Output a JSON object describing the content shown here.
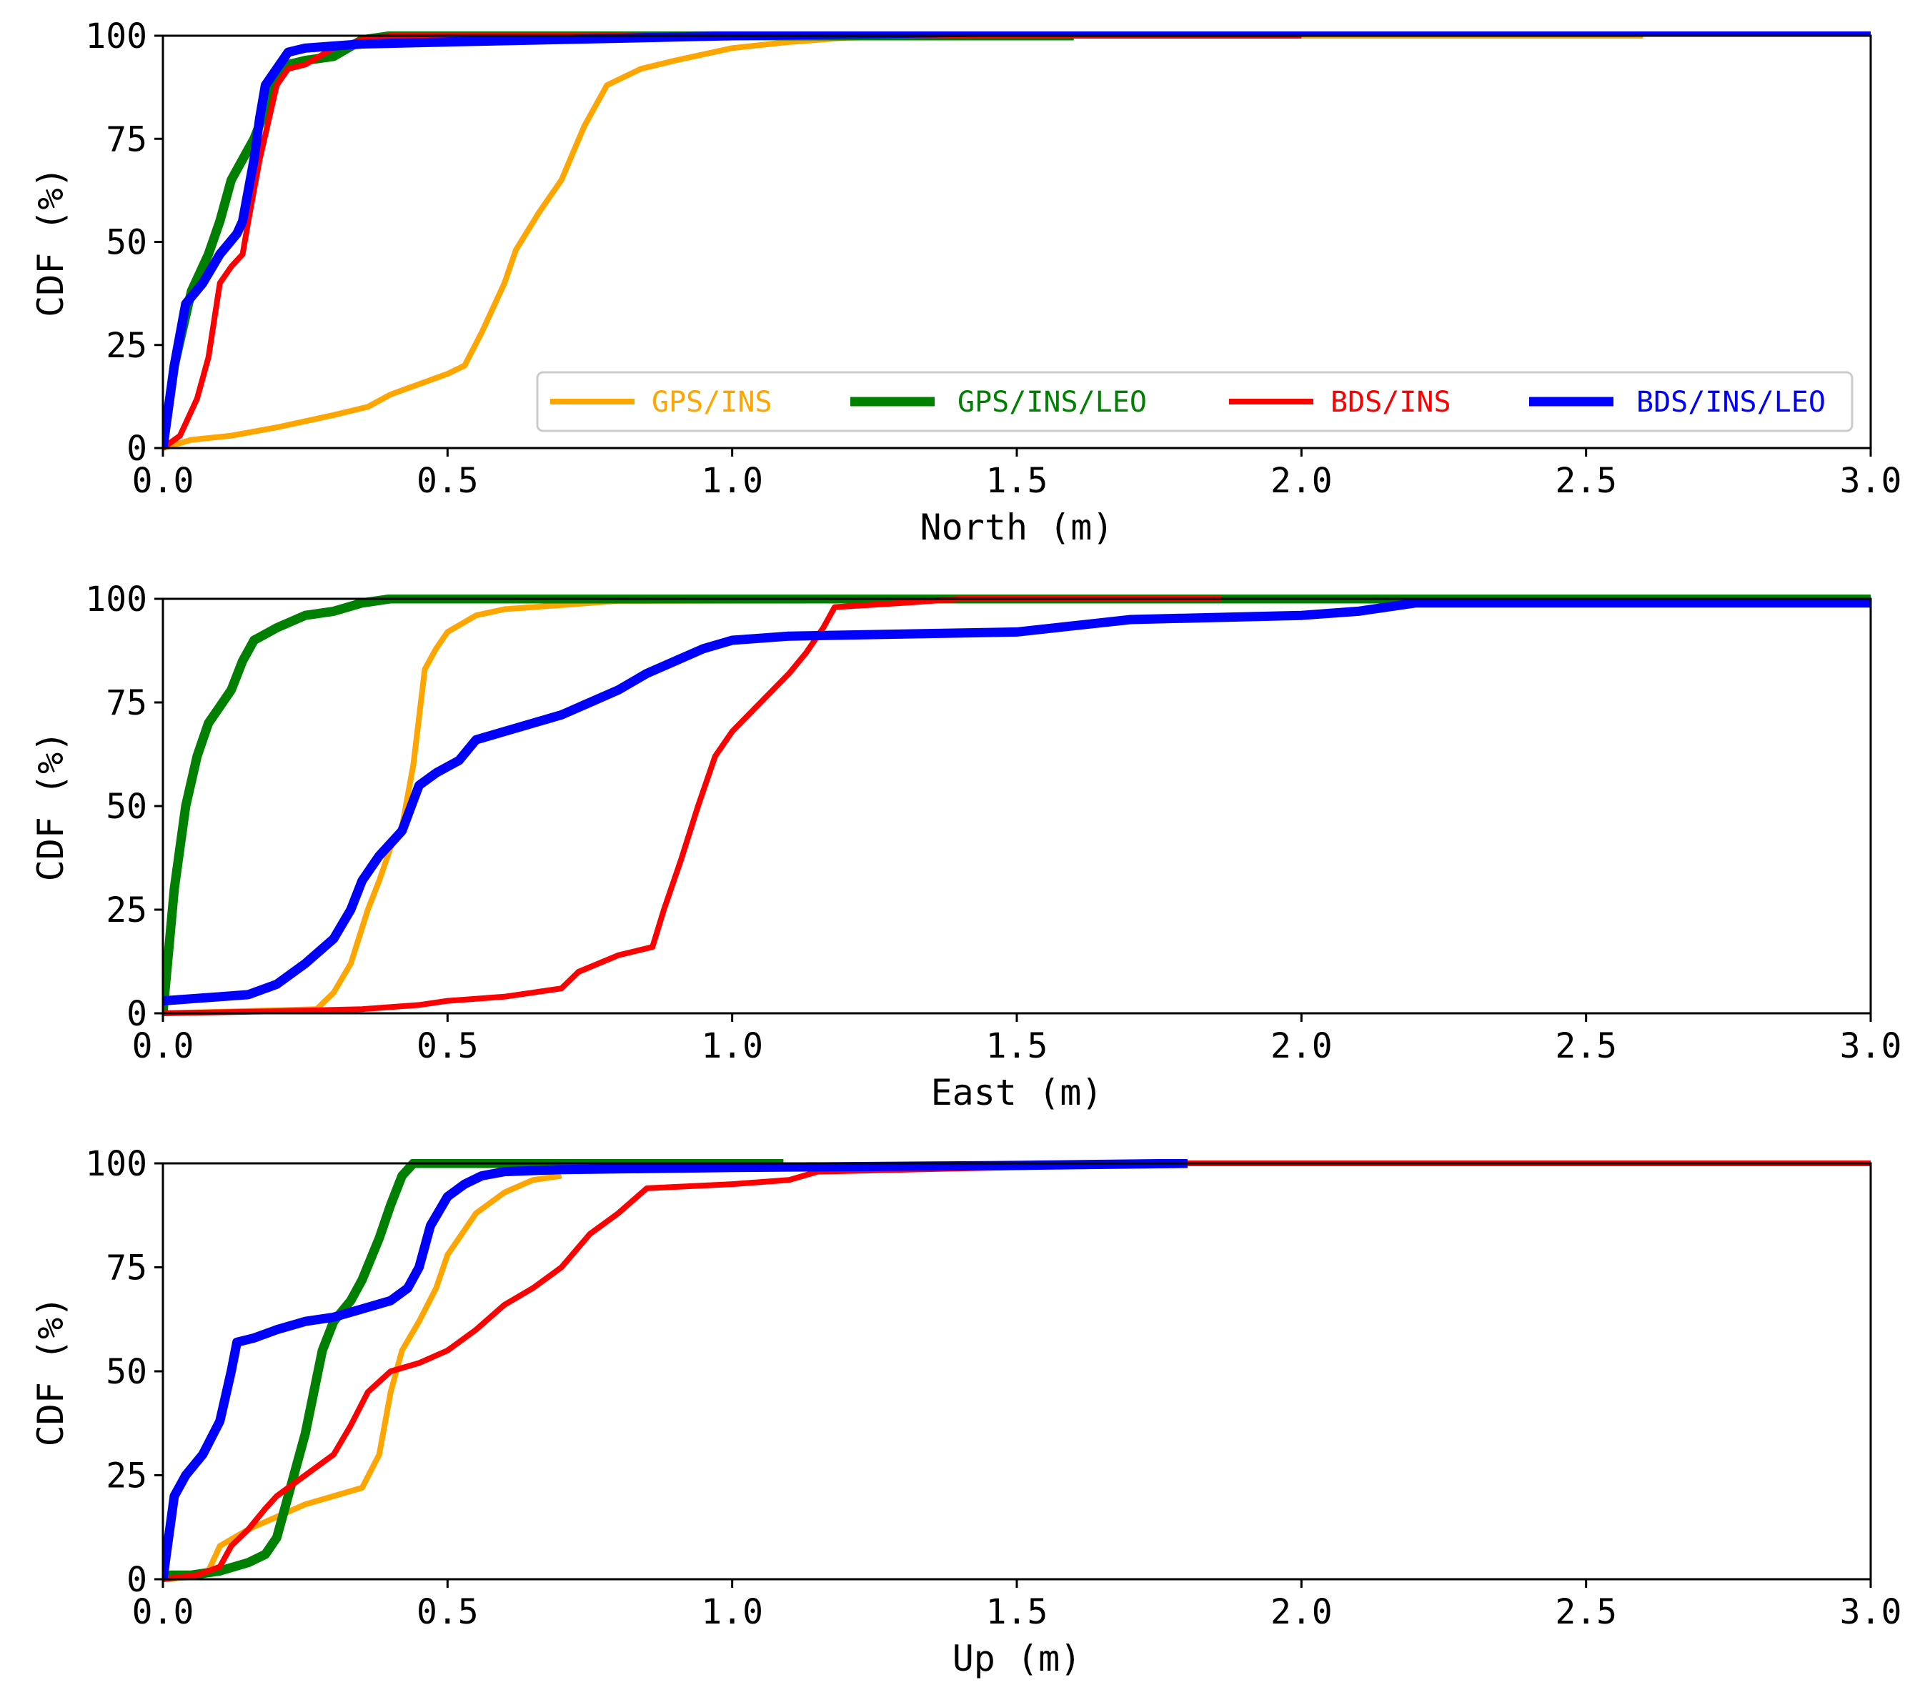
{
  "chart_data": [
    {
      "type": "line",
      "xlabel": "North (m)",
      "ylabel": "CDF (%)",
      "xlim": [
        0,
        3
      ],
      "ylim": [
        0,
        100
      ],
      "xticks": [
        "0.0",
        "0.5",
        "1.0",
        "1.5",
        "2.0",
        "2.5",
        "3.0"
      ],
      "yticks": [
        "0",
        "25",
        "50",
        "75",
        "100"
      ],
      "legend": "bottom-right",
      "series": [
        {
          "name": "GPS/INS",
          "color": "#FFA500",
          "x": [
            0,
            0.05,
            0.12,
            0.2,
            0.3,
            0.36,
            0.4,
            0.44,
            0.5,
            0.53,
            0.56,
            0.6,
            0.62,
            0.66,
            0.7,
            0.74,
            0.78,
            0.84,
            0.9,
            1.0,
            1.1,
            1.2,
            1.4,
            2.6
          ],
          "y": [
            0,
            2,
            3,
            5,
            8,
            10,
            13,
            15,
            18,
            20,
            28,
            40,
            48,
            57,
            65,
            78,
            88,
            92,
            94,
            97,
            98.5,
            99.5,
            100,
            100
          ]
        },
        {
          "name": "GPS/INS/LEO",
          "color": "#008000",
          "x": [
            0,
            0.02,
            0.05,
            0.08,
            0.1,
            0.12,
            0.14,
            0.16,
            0.18,
            0.2,
            0.22,
            0.25,
            0.3,
            0.35,
            0.4,
            1.6
          ],
          "y": [
            0,
            20,
            38,
            47,
            55,
            65,
            70,
            75,
            82,
            90,
            93,
            94,
            95,
            99,
            100,
            100
          ]
        },
        {
          "name": "BDS/INS",
          "color": "#FF0000",
          "x": [
            0,
            0.03,
            0.06,
            0.08,
            0.1,
            0.12,
            0.14,
            0.15,
            0.17,
            0.2,
            0.22,
            0.25,
            0.3,
            0.35,
            0.4,
            2.0
          ],
          "y": [
            0,
            3,
            12,
            22,
            40,
            44,
            47,
            55,
            70,
            88,
            92,
            93,
            97,
            99,
            100,
            100
          ]
        },
        {
          "name": "BDS/INS/LEO",
          "color": "#0000FF",
          "x": [
            0,
            0.02,
            0.04,
            0.07,
            0.1,
            0.13,
            0.14,
            0.16,
            0.17,
            0.18,
            0.2,
            0.22,
            0.25,
            0.35,
            0.5,
            1.0,
            1.5,
            3.0
          ],
          "y": [
            0,
            20,
            35,
            40,
            47,
            52,
            55,
            70,
            80,
            88,
            92,
            96,
            97,
            98,
            98.5,
            100,
            101,
            101
          ]
        }
      ]
    },
    {
      "type": "line",
      "xlabel": "East (m)",
      "ylabel": "CDF (%)",
      "xlim": [
        0,
        3
      ],
      "ylim": [
        0,
        100
      ],
      "xticks": [
        "0.0",
        "0.5",
        "1.0",
        "1.5",
        "2.0",
        "2.5",
        "3.0"
      ],
      "yticks": [
        "0",
        "25",
        "50",
        "75",
        "100"
      ],
      "series": [
        {
          "name": "GPS/INS",
          "color": "#FFA500",
          "x": [
            0,
            0.27,
            0.3,
            0.33,
            0.36,
            0.38,
            0.4,
            0.42,
            0.44,
            0.46,
            0.48,
            0.5,
            0.55,
            0.6,
            0.7,
            0.8,
            3.0
          ],
          "y": [
            0,
            1,
            5,
            12,
            25,
            32,
            40,
            45,
            60,
            83,
            88,
            92,
            96,
            97.5,
            98.5,
            99.5,
            100
          ]
        },
        {
          "name": "GPS/INS/LEO",
          "color": "#008000",
          "x": [
            0,
            0.01,
            0.02,
            0.04,
            0.06,
            0.08,
            0.1,
            0.12,
            0.14,
            0.16,
            0.2,
            0.25,
            0.3,
            0.35,
            0.4,
            3.0
          ],
          "y": [
            0,
            15,
            30,
            50,
            62,
            70,
            74,
            78,
            85,
            90,
            93,
            96,
            97,
            99,
            100,
            100
          ]
        },
        {
          "name": "BDS/INS",
          "color": "#FF0000",
          "x": [
            0,
            0.2,
            0.35,
            0.45,
            0.5,
            0.6,
            0.7,
            0.73,
            0.8,
            0.86,
            0.88,
            0.91,
            0.94,
            0.97,
            1.0,
            1.05,
            1.1,
            1.13,
            1.16,
            1.18,
            1.3,
            1.4,
            1.86
          ],
          "y": [
            0,
            0.5,
            1,
            2,
            3,
            4,
            6,
            10,
            14,
            16,
            25,
            37,
            50,
            62,
            68,
            75,
            82,
            87,
            93,
            98,
            99,
            100,
            100
          ]
        },
        {
          "name": "BDS/INS/LEO",
          "color": "#0000FF",
          "x": [
            0,
            0.05,
            0.1,
            0.15,
            0.2,
            0.25,
            0.3,
            0.33,
            0.35,
            0.38,
            0.4,
            0.42,
            0.45,
            0.48,
            0.52,
            0.55,
            0.6,
            0.7,
            0.75,
            0.8,
            0.85,
            0.9,
            0.95,
            1.0,
            1.1,
            1.5,
            1.7,
            2.0,
            2.1,
            2.2,
            3.0
          ],
          "y": [
            3,
            3.5,
            4,
            4.5,
            7,
            12,
            18,
            25,
            32,
            38,
            41,
            44,
            55,
            58,
            61,
            66,
            68,
            72,
            75,
            78,
            82,
            85,
            88,
            90,
            91,
            92,
            95,
            96,
            97,
            99,
            99
          ]
        }
      ]
    },
    {
      "type": "line",
      "xlabel": "Up (m)",
      "ylabel": "CDF (%)",
      "xlim": [
        0,
        3
      ],
      "ylim": [
        0,
        100
      ],
      "xticks": [
        "0.0",
        "0.5",
        "1.0",
        "1.5",
        "2.0",
        "2.5",
        "3.0"
      ],
      "yticks": [
        "0",
        "25",
        "50",
        "75",
        "100"
      ],
      "series": [
        {
          "name": "GPS/INS",
          "color": "#FFA500",
          "x": [
            0,
            0.05,
            0.08,
            0.1,
            0.15,
            0.2,
            0.25,
            0.3,
            0.35,
            0.38,
            0.4,
            0.42,
            0.45,
            0.48,
            0.5,
            0.52,
            0.55,
            0.6,
            0.65,
            0.7
          ],
          "y": [
            0,
            0.5,
            2,
            8,
            12,
            15,
            18,
            20,
            22,
            30,
            45,
            55,
            62,
            70,
            78,
            82,
            88,
            93,
            96,
            97
          ]
        },
        {
          "name": "GPS/INS/LEO",
          "color": "#008000",
          "x": [
            0,
            0.05,
            0.1,
            0.15,
            0.18,
            0.2,
            0.22,
            0.25,
            0.28,
            0.3,
            0.33,
            0.35,
            0.38,
            0.4,
            0.42,
            0.44,
            0.5,
            1.09
          ],
          "y": [
            1,
            1,
            2,
            4,
            6,
            10,
            20,
            35,
            55,
            62,
            67,
            72,
            82,
            90,
            97,
            100,
            100,
            100
          ]
        },
        {
          "name": "BDS/INS",
          "color": "#FF0000",
          "x": [
            0,
            0.06,
            0.1,
            0.12,
            0.15,
            0.18,
            0.2,
            0.25,
            0.3,
            0.33,
            0.36,
            0.4,
            0.45,
            0.5,
            0.55,
            0.6,
            0.65,
            0.7,
            0.75,
            0.8,
            0.85,
            1.0,
            1.1,
            1.15,
            1.8,
            3.0
          ],
          "y": [
            0,
            1,
            3,
            8,
            12,
            17,
            20,
            25,
            30,
            37,
            45,
            50,
            52,
            55,
            60,
            66,
            70,
            75,
            83,
            88,
            94,
            95,
            96,
            98,
            100,
            100
          ]
        },
        {
          "name": "BDS/INS/LEO",
          "color": "#0000FF",
          "x": [
            0,
            0.02,
            0.04,
            0.07,
            0.1,
            0.12,
            0.13,
            0.16,
            0.2,
            0.25,
            0.3,
            0.35,
            0.4,
            0.43,
            0.45,
            0.47,
            0.5,
            0.53,
            0.56,
            0.6,
            0.7,
            1.0,
            1.5,
            1.8
          ],
          "y": [
            0,
            20,
            25,
            30,
            38,
            50,
            57,
            58,
            60,
            62,
            63,
            65,
            67,
            70,
            75,
            85,
            92,
            95,
            97,
            98,
            98.5,
            99,
            99.5,
            100
          ]
        }
      ]
    }
  ]
}
